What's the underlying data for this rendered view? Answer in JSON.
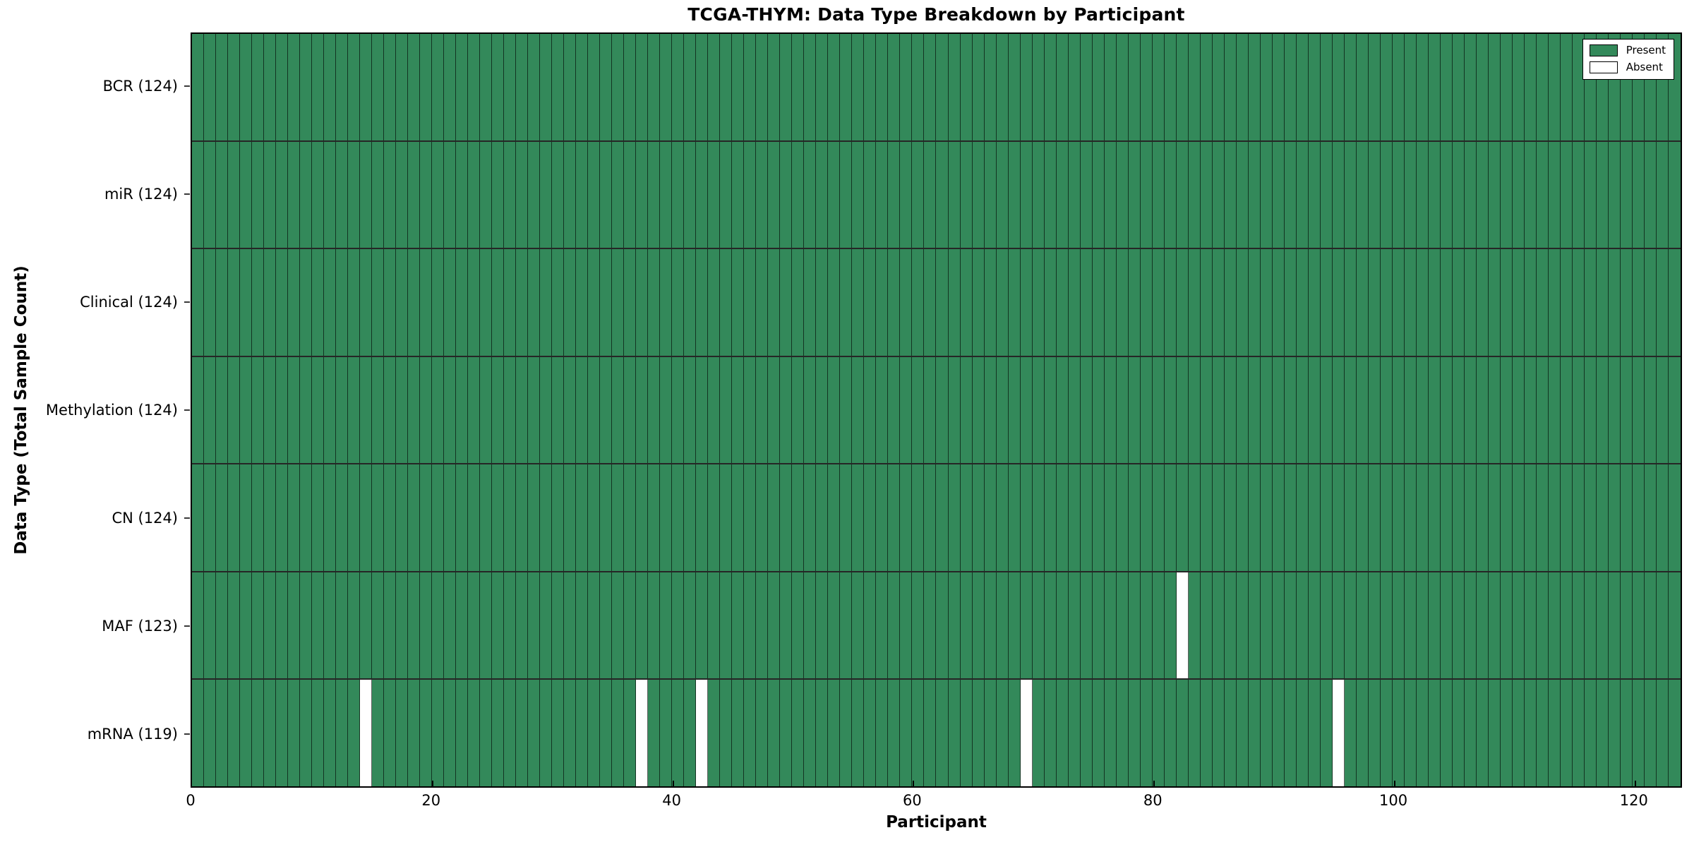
{
  "title": "TCGA-THYM: Data Type Breakdown by Participant",
  "chart_data": {
    "type": "heatmap",
    "title": "TCGA-THYM: Data Type Breakdown by Participant",
    "xlabel": "Participant",
    "ylabel": "Data Type (Total Sample Count)",
    "xlim": [
      0,
      124
    ],
    "n_participants": 124,
    "x_ticks": [
      0,
      20,
      40,
      60,
      80,
      100,
      120
    ],
    "grid": false,
    "rows": [
      {
        "data_type": "BCR",
        "label": "BCR (124)",
        "present_count": 124,
        "absent_participants": []
      },
      {
        "data_type": "miR",
        "label": "miR (124)",
        "present_count": 124,
        "absent_participants": []
      },
      {
        "data_type": "Clinical",
        "label": "Clinical (124)",
        "present_count": 124,
        "absent_participants": []
      },
      {
        "data_type": "Methylation",
        "label": "Methylation (124)",
        "present_count": 124,
        "absent_participants": []
      },
      {
        "data_type": "CN",
        "label": "CN (124)",
        "present_count": 124,
        "absent_participants": []
      },
      {
        "data_type": "MAF",
        "label": "MAF (123)",
        "present_count": 123,
        "absent_participants": [
          82
        ]
      },
      {
        "data_type": "mRNA",
        "label": "mRNA (119)",
        "present_count": 119,
        "absent_participants": [
          14,
          37,
          42,
          69,
          95
        ]
      }
    ],
    "legend": {
      "position": "upper right",
      "entries": [
        {
          "label": "Present",
          "color": "#33895a"
        },
        {
          "label": "Absent",
          "color": "#ffffff"
        }
      ]
    },
    "colors": {
      "present": "#33895a",
      "absent": "#ffffff",
      "edge": "#000000",
      "background": "#ffffff"
    }
  }
}
